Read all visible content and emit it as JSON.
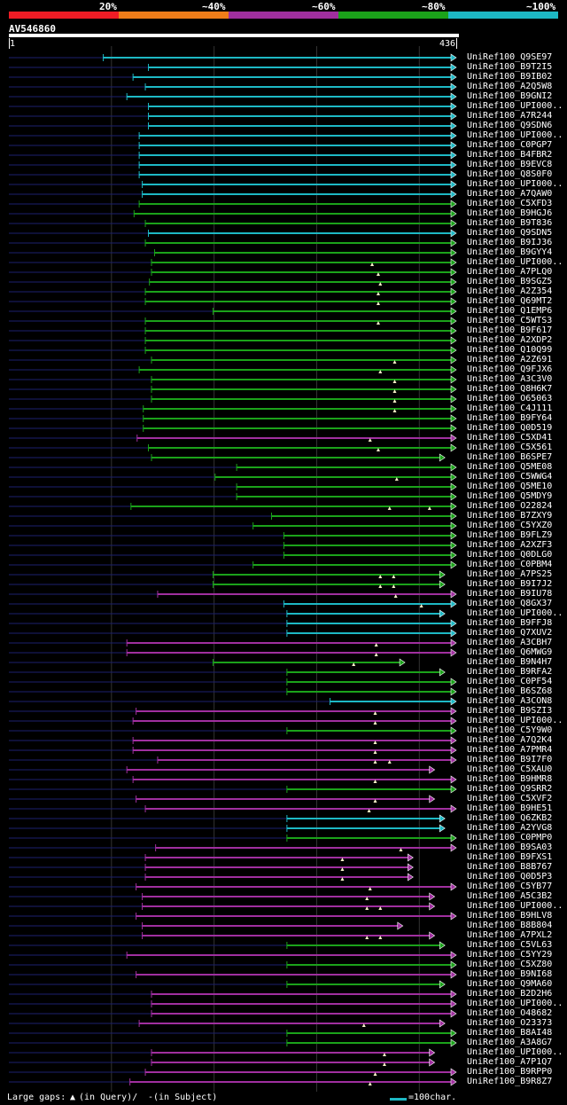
{
  "query_id": "AV546860",
  "query_start": "1",
  "query_length": "436",
  "identity_legend": [
    {
      "label": "20%",
      "color": "#ef1c25"
    },
    {
      "label": "~40%",
      "color": "#f07d19"
    },
    {
      "label": "~60%",
      "color": "#a02f9f"
    },
    {
      "label": "~80%",
      "color": "#1ba21a"
    },
    {
      "label": "~100%",
      "color": "#1db8c4"
    }
  ],
  "colors": {
    "teal": "#1db8c4",
    "green": "#1ba21a",
    "purple": "#a02f9f",
    "track": "#1b1f6e",
    "grid": "#333333",
    "gap": "#f5f0c8"
  },
  "footer": {
    "gaps_label": "Large gaps: ",
    "gap_query_glyph": "▲",
    "gap_query_text": "(in Query)/",
    "gap_subject_glyph": "-",
    "gap_subject_text": " (in Subject)",
    "scale_text": "=100char."
  },
  "hits": [
    {
      "label": "UniRef100_Q9SE97",
      "color": "teal",
      "start": 92,
      "end": 436
    },
    {
      "label": "UniRef100_B9T2I5",
      "color": "teal",
      "start": 136,
      "end": 436
    },
    {
      "label": "UniRef100_B9IB02",
      "color": "teal",
      "start": 121,
      "end": 436
    },
    {
      "label": "UniRef100_A2Q5W8",
      "color": "teal",
      "start": 133,
      "end": 436
    },
    {
      "label": "UniRef100_B9GNI2",
      "color": "teal",
      "start": 115,
      "end": 436
    },
    {
      "label": "UniRef100_UPI000..",
      "color": "teal",
      "start": 136,
      "end": 436
    },
    {
      "label": "UniRef100_A7R244",
      "color": "teal",
      "start": 136,
      "end": 436
    },
    {
      "label": "UniRef100_Q9SDN6",
      "color": "teal",
      "start": 136,
      "end": 436
    },
    {
      "label": "UniRef100_UPI000..",
      "color": "teal",
      "start": 127,
      "end": 436
    },
    {
      "label": "UniRef100_C0PGP7",
      "color": "teal",
      "start": 127,
      "end": 436
    },
    {
      "label": "UniRef100_B4FBR2",
      "color": "teal",
      "start": 127,
      "end": 436
    },
    {
      "label": "UniRef100_B9EVC8",
      "color": "teal",
      "start": 127,
      "end": 436
    },
    {
      "label": "UniRef100_Q8S0F0",
      "color": "teal",
      "start": 127,
      "end": 436
    },
    {
      "label": "UniRef100_UPI000..",
      "color": "teal",
      "start": 130,
      "end": 436
    },
    {
      "label": "UniRef100_A7QAW0",
      "color": "teal",
      "start": 130,
      "end": 436
    },
    {
      "label": "UniRef100_C5XFD3",
      "color": "green",
      "start": 127,
      "end": 436
    },
    {
      "label": "UniRef100_B9HGJ6",
      "color": "green",
      "start": 122,
      "end": 436
    },
    {
      "label": "UniRef100_B9T836",
      "color": "green",
      "start": 133,
      "end": 436
    },
    {
      "label": "UniRef100_Q9SDN5",
      "color": "teal",
      "start": 136,
      "end": 436
    },
    {
      "label": "UniRef100_B9IJ36",
      "color": "green",
      "start": 133,
      "end": 436
    },
    {
      "label": "UniRef100_B9GYY4",
      "color": "green",
      "start": 142,
      "end": 436
    },
    {
      "label": "UniRef100_UPI000..",
      "color": "green",
      "start": 139,
      "end": 436,
      "gaps": [
        354
      ]
    },
    {
      "label": "UniRef100_A7PLQ0",
      "color": "green",
      "start": 139,
      "end": 436,
      "gaps": [
        360
      ]
    },
    {
      "label": "UniRef100_B9SGZ5",
      "color": "green",
      "start": 137,
      "end": 436,
      "gaps": [
        362
      ]
    },
    {
      "label": "UniRef100_A2Z354",
      "color": "green",
      "start": 133,
      "end": 436,
      "gaps": [
        360
      ]
    },
    {
      "label": "UniRef100_Q69MT2",
      "color": "green",
      "start": 133,
      "end": 436,
      "gaps": [
        360
      ]
    },
    {
      "label": "UniRef100_Q1EMP6",
      "color": "green",
      "start": 199,
      "end": 436
    },
    {
      "label": "UniRef100_C5WTS3",
      "color": "green",
      "start": 133,
      "end": 436,
      "gaps": [
        360
      ]
    },
    {
      "label": "UniRef100_B9F617",
      "color": "green",
      "start": 133,
      "end": 436
    },
    {
      "label": "UniRef100_A2XDP2",
      "color": "green",
      "start": 133,
      "end": 436
    },
    {
      "label": "UniRef100_Q10Q99",
      "color": "green",
      "start": 133,
      "end": 436
    },
    {
      "label": "UniRef100_A2Z691",
      "color": "green",
      "start": 139,
      "end": 436,
      "gaps": [
        376
      ]
    },
    {
      "label": "UniRef100_Q9FJX6",
      "color": "green",
      "start": 127,
      "end": 436,
      "gaps": [
        362
      ]
    },
    {
      "label": "UniRef100_A3C3V0",
      "color": "green",
      "start": 139,
      "end": 436,
      "gaps": [
        376
      ]
    },
    {
      "label": "UniRef100_Q8H6K7",
      "color": "green",
      "start": 139,
      "end": 436,
      "gaps": [
        376
      ]
    },
    {
      "label": "UniRef100_O65063",
      "color": "green",
      "start": 139,
      "end": 436,
      "gaps": [
        376
      ]
    },
    {
      "label": "UniRef100_C4J111",
      "color": "green",
      "start": 131,
      "end": 436,
      "gaps": [
        376
      ]
    },
    {
      "label": "UniRef100_B9FY64",
      "color": "green",
      "start": 131,
      "end": 436
    },
    {
      "label": "UniRef100_Q0D519",
      "color": "green",
      "start": 131,
      "end": 436
    },
    {
      "label": "UniRef100_C5XD41",
      "color": "purple",
      "start": 125,
      "end": 436,
      "gaps": [
        352
      ]
    },
    {
      "label": "UniRef100_C5X561",
      "color": "green",
      "start": 136,
      "end": 436,
      "gaps": [
        360
      ]
    },
    {
      "label": "UniRef100_B6SPE7",
      "color": "green",
      "start": 139,
      "end": 425
    },
    {
      "label": "UniRef100_Q5ME08",
      "color": "green",
      "start": 222,
      "end": 436
    },
    {
      "label": "UniRef100_C5WWG4",
      "color": "green",
      "start": 201,
      "end": 436,
      "gaps": [
        378
      ]
    },
    {
      "label": "UniRef100_Q5ME10",
      "color": "green",
      "start": 222,
      "end": 436
    },
    {
      "label": "UniRef100_Q5MDY9",
      "color": "green",
      "start": 222,
      "end": 436
    },
    {
      "label": "UniRef100_O22824",
      "color": "green",
      "start": 119,
      "end": 436,
      "gaps": [
        371,
        410
      ]
    },
    {
      "label": "UniRef100_B7ZXY9",
      "color": "green",
      "start": 256,
      "end": 436
    },
    {
      "label": "UniRef100_C5YXZ0",
      "color": "green",
      "start": 238,
      "end": 436
    },
    {
      "label": "UniRef100_B9FLZ9",
      "color": "green",
      "start": 268,
      "end": 436
    },
    {
      "label": "UniRef100_A2XZF3",
      "color": "green",
      "start": 268,
      "end": 436
    },
    {
      "label": "UniRef100_Q0DLG0",
      "color": "green",
      "start": 268,
      "end": 436
    },
    {
      "label": "UniRef100_C0PBM4",
      "color": "green",
      "start": 238,
      "end": 436
    },
    {
      "label": "UniRef100_A7PS25",
      "color": "green",
      "start": 199,
      "end": 425,
      "gaps": [
        362,
        375
      ]
    },
    {
      "label": "UniRef100_B9I7J2",
      "color": "green",
      "start": 199,
      "end": 425,
      "gaps": [
        362,
        375
      ]
    },
    {
      "label": "UniRef100_B9IU78",
      "color": "purple",
      "start": 145,
      "end": 436,
      "gaps": [
        377
      ]
    },
    {
      "label": "UniRef100_Q8GX37",
      "color": "teal",
      "start": 268,
      "end": 436,
      "gaps": [
        402
      ]
    },
    {
      "label": "UniRef100_UPI000..",
      "color": "teal",
      "start": 271,
      "end": 425
    },
    {
      "label": "UniRef100_B9FFJ8",
      "color": "teal",
      "start": 271,
      "end": 436
    },
    {
      "label": "UniRef100_Q7XUV2",
      "color": "teal",
      "start": 271,
      "end": 436
    },
    {
      "label": "UniRef100_A3CBH7",
      "color": "purple",
      "start": 115,
      "end": 436,
      "gaps": [
        358
      ]
    },
    {
      "label": "UniRef100_Q6MWG9",
      "color": "purple",
      "start": 115,
      "end": 436,
      "gaps": [
        358
      ]
    },
    {
      "label": "UniRef100_B9N4H7",
      "color": "green",
      "start": 199,
      "end": 386,
      "gaps": [
        336
      ]
    },
    {
      "label": "UniRef100_B9RFA2",
      "color": "green",
      "start": 271,
      "end": 425
    },
    {
      "label": "UniRef100_C0PF54",
      "color": "green",
      "start": 271,
      "end": 436
    },
    {
      "label": "UniRef100_B6SZ68",
      "color": "green",
      "start": 271,
      "end": 436
    },
    {
      "label": "UniRef100_A3CON8",
      "color": "teal",
      "start": 313,
      "end": 436
    },
    {
      "label": "UniRef100_B9SZI3",
      "color": "purple",
      "start": 124,
      "end": 436,
      "gaps": [
        357
      ]
    },
    {
      "label": "UniRef100_UPI000..",
      "color": "purple",
      "start": 121,
      "end": 436,
      "gaps": [
        357
      ]
    },
    {
      "label": "UniRef100_C5Y9W0",
      "color": "green",
      "start": 271,
      "end": 436
    },
    {
      "label": "UniRef100_A7Q2K4",
      "color": "purple",
      "start": 121,
      "end": 436,
      "gaps": [
        357
      ]
    },
    {
      "label": "UniRef100_A7PMR4",
      "color": "purple",
      "start": 121,
      "end": 436,
      "gaps": [
        357
      ]
    },
    {
      "label": "UniRef100_B9I7F0",
      "color": "purple",
      "start": 145,
      "end": 436,
      "gaps": [
        357,
        371
      ]
    },
    {
      "label": "UniRef100_C5XAU0",
      "color": "purple",
      "start": 115,
      "end": 415
    },
    {
      "label": "UniRef100_B9HMR8",
      "color": "purple",
      "start": 121,
      "end": 436,
      "gaps": [
        357
      ]
    },
    {
      "label": "UniRef100_Q9SRR2",
      "color": "green",
      "start": 271,
      "end": 436
    },
    {
      "label": "UniRef100_C5XVF2",
      "color": "purple",
      "start": 124,
      "end": 415,
      "gaps": [
        357
      ]
    },
    {
      "label": "UniRef100_B9HE51",
      "color": "purple",
      "start": 133,
      "end": 436,
      "gaps": [
        351
      ]
    },
    {
      "label": "UniRef100_Q6ZKB2",
      "color": "teal",
      "start": 271,
      "end": 425
    },
    {
      "label": "UniRef100_A2YVG8",
      "color": "teal",
      "start": 271,
      "end": 425
    },
    {
      "label": "UniRef100_C0PMP0",
      "color": "green",
      "start": 271,
      "end": 436
    },
    {
      "label": "UniRef100_B9SA03",
      "color": "purple",
      "start": 143,
      "end": 436,
      "gaps": [
        382
      ]
    },
    {
      "label": "UniRef100_B9FXS1",
      "color": "purple",
      "start": 133,
      "end": 394,
      "gaps": [
        325
      ]
    },
    {
      "label": "UniRef100_B8B767",
      "color": "purple",
      "start": 133,
      "end": 394,
      "gaps": [
        325
      ]
    },
    {
      "label": "UniRef100_Q0D5P3",
      "color": "purple",
      "start": 133,
      "end": 394,
      "gaps": [
        325
      ]
    },
    {
      "label": "UniRef100_C5YB77",
      "color": "purple",
      "start": 124,
      "end": 436,
      "gaps": [
        352
      ]
    },
    {
      "label": "UniRef100_A5C3B2",
      "color": "purple",
      "start": 130,
      "end": 415,
      "gaps": [
        349
      ]
    },
    {
      "label": "UniRef100_UPI000..",
      "color": "purple",
      "start": 130,
      "end": 415,
      "gaps": [
        349,
        362
      ]
    },
    {
      "label": "UniRef100_B9HLV8",
      "color": "purple",
      "start": 124,
      "end": 436
    },
    {
      "label": "UniRef100_B8B804",
      "color": "purple",
      "start": 130,
      "end": 384
    },
    {
      "label": "UniRef100_A7PXL2",
      "color": "purple",
      "start": 130,
      "end": 415,
      "gaps": [
        349,
        362
      ]
    },
    {
      "label": "UniRef100_C5VL63",
      "color": "green",
      "start": 271,
      "end": 425
    },
    {
      "label": "UniRef100_C5YY29",
      "color": "purple",
      "start": 115,
      "end": 436
    },
    {
      "label": "UniRef100_C5XZ80",
      "color": "green",
      "start": 271,
      "end": 436
    },
    {
      "label": "UniRef100_B9NI68",
      "color": "purple",
      "start": 124,
      "end": 436
    },
    {
      "label": "UniRef100_Q9MA60",
      "color": "green",
      "start": 271,
      "end": 425
    },
    {
      "label": "UniRef100_B2D2H6",
      "color": "purple",
      "start": 139,
      "end": 436
    },
    {
      "label": "UniRef100_UPI000..",
      "color": "purple",
      "start": 139,
      "end": 436
    },
    {
      "label": "UniRef100_O48682",
      "color": "purple",
      "start": 139,
      "end": 436
    },
    {
      "label": "UniRef100_O23373",
      "color": "purple",
      "start": 127,
      "end": 425,
      "gaps": [
        346
      ]
    },
    {
      "label": "UniRef100_B8AI48",
      "color": "green",
      "start": 271,
      "end": 436
    },
    {
      "label": "UniRef100_A3A8G7",
      "color": "green",
      "start": 271,
      "end": 436
    },
    {
      "label": "UniRef100_UPI000..",
      "color": "purple",
      "start": 139,
      "end": 415,
      "gaps": [
        366
      ]
    },
    {
      "label": "UniRef100_A7P1Q7",
      "color": "purple",
      "start": 139,
      "end": 415,
      "gaps": [
        366
      ]
    },
    {
      "label": "UniRef100_B9RPP0",
      "color": "purple",
      "start": 133,
      "end": 436,
      "gaps": [
        357
      ]
    },
    {
      "label": "UniRef100_B9R8Z7",
      "color": "purple",
      "start": 118,
      "end": 436,
      "gaps": [
        352
      ]
    }
  ]
}
